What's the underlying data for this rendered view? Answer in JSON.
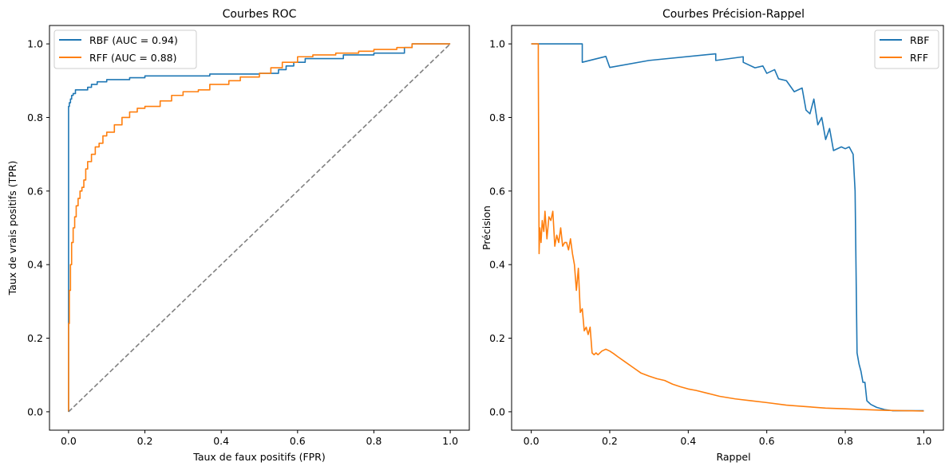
{
  "chart_data": [
    {
      "type": "line",
      "title": "Courbes ROC",
      "xlabel": "Taux de faux positifs (FPR)",
      "ylabel": "Taux de vrais positifs (TPR)",
      "xlim": [
        -0.05,
        1.05
      ],
      "ylim": [
        -0.05,
        1.05
      ],
      "xticks": [
        0.0,
        0.2,
        0.4,
        0.6,
        0.8,
        1.0
      ],
      "yticks": [
        0.0,
        0.2,
        0.4,
        0.6,
        0.8,
        1.0
      ],
      "grid": false,
      "legend_position": "upper-left",
      "series": [
        {
          "name": "RBF (AUC = 0.94)",
          "color": "#1f77b4",
          "style": "steps",
          "x": [
            0,
            0,
            0.002,
            0.002,
            0.005,
            0.005,
            0.008,
            0.008,
            0.012,
            0.012,
            0.018,
            0.018,
            0.05,
            0.05,
            0.06,
            0.06,
            0.075,
            0.075,
            0.1,
            0.1,
            0.16,
            0.16,
            0.2,
            0.2,
            0.37,
            0.37,
            0.5,
            0.5,
            0.55,
            0.55,
            0.57,
            0.57,
            0.59,
            0.59,
            0.62,
            0.62,
            0.72,
            0.72,
            0.8,
            0.8,
            0.88,
            0.88,
            0.9,
            0.9,
            1.0
          ],
          "y": [
            0,
            0.83,
            0.83,
            0.84,
            0.84,
            0.85,
            0.85,
            0.86,
            0.86,
            0.865,
            0.865,
            0.875,
            0.875,
            0.882,
            0.882,
            0.89,
            0.89,
            0.897,
            0.897,
            0.903,
            0.903,
            0.908,
            0.908,
            0.913,
            0.913,
            0.918,
            0.918,
            0.92,
            0.92,
            0.93,
            0.93,
            0.94,
            0.94,
            0.95,
            0.95,
            0.96,
            0.96,
            0.97,
            0.97,
            0.975,
            0.975,
            0.99,
            0.99,
            1.0,
            1.0
          ]
        },
        {
          "name": "RFF (AUC = 0.88)",
          "color": "#ff7f0e",
          "style": "steps",
          "x": [
            0,
            0,
            0.002,
            0.002,
            0.005,
            0.005,
            0.008,
            0.008,
            0.012,
            0.012,
            0.016,
            0.016,
            0.02,
            0.02,
            0.025,
            0.025,
            0.03,
            0.03,
            0.035,
            0.035,
            0.04,
            0.04,
            0.045,
            0.045,
            0.05,
            0.05,
            0.06,
            0.06,
            0.07,
            0.07,
            0.08,
            0.08,
            0.09,
            0.09,
            0.1,
            0.1,
            0.12,
            0.12,
            0.14,
            0.14,
            0.16,
            0.16,
            0.18,
            0.18,
            0.2,
            0.2,
            0.24,
            0.24,
            0.27,
            0.27,
            0.3,
            0.3,
            0.34,
            0.34,
            0.37,
            0.37,
            0.42,
            0.42,
            0.45,
            0.45,
            0.5,
            0.5,
            0.53,
            0.53,
            0.56,
            0.56,
            0.6,
            0.6,
            0.64,
            0.64,
            0.7,
            0.7,
            0.76,
            0.76,
            0.8,
            0.8,
            0.86,
            0.86,
            0.9,
            0.9,
            1.0
          ],
          "y": [
            0,
            0.24,
            0.24,
            0.33,
            0.33,
            0.4,
            0.4,
            0.46,
            0.46,
            0.5,
            0.5,
            0.53,
            0.53,
            0.56,
            0.56,
            0.58,
            0.58,
            0.6,
            0.6,
            0.61,
            0.61,
            0.63,
            0.63,
            0.66,
            0.66,
            0.68,
            0.68,
            0.7,
            0.7,
            0.72,
            0.72,
            0.73,
            0.73,
            0.75,
            0.75,
            0.76,
            0.76,
            0.78,
            0.78,
            0.8,
            0.8,
            0.815,
            0.815,
            0.825,
            0.825,
            0.83,
            0.83,
            0.845,
            0.845,
            0.86,
            0.86,
            0.87,
            0.87,
            0.875,
            0.875,
            0.89,
            0.89,
            0.9,
            0.9,
            0.91,
            0.91,
            0.92,
            0.92,
            0.935,
            0.935,
            0.95,
            0.95,
            0.965,
            0.965,
            0.97,
            0.97,
            0.975,
            0.975,
            0.98,
            0.98,
            0.985,
            0.985,
            0.99,
            0.99,
            1.0,
            1.0
          ]
        },
        {
          "name": "",
          "color": "#808080",
          "style": "dashed",
          "x": [
            0,
            1
          ],
          "y": [
            0,
            1
          ]
        }
      ]
    },
    {
      "type": "line",
      "title": "Courbes Précision-Rappel",
      "xlabel": "Rappel",
      "ylabel": "Précision",
      "xlim": [
        -0.05,
        1.05
      ],
      "ylim": [
        -0.05,
        1.05
      ],
      "xticks": [
        0.0,
        0.2,
        0.4,
        0.6,
        0.8,
        1.0
      ],
      "yticks": [
        0.0,
        0.2,
        0.4,
        0.6,
        0.8,
        1.0
      ],
      "grid": false,
      "legend_position": "upper-right",
      "series": [
        {
          "name": "RBF",
          "color": "#1f77b4",
          "style": "line",
          "x": [
            0.0,
            0.13,
            0.13,
            0.19,
            0.2,
            0.3,
            0.47,
            0.47,
            0.54,
            0.54,
            0.57,
            0.59,
            0.6,
            0.62,
            0.63,
            0.65,
            0.67,
            0.69,
            0.7,
            0.71,
            0.72,
            0.73,
            0.74,
            0.75,
            0.76,
            0.77,
            0.79,
            0.8,
            0.81,
            0.82,
            0.825,
            0.83,
            0.835,
            0.84,
            0.845,
            0.85,
            0.855,
            0.86,
            0.865,
            0.88,
            0.9,
            0.92,
            1.0
          ],
          "y": [
            1.0,
            1.0,
            0.95,
            0.966,
            0.936,
            0.955,
            0.973,
            0.955,
            0.965,
            0.95,
            0.935,
            0.94,
            0.92,
            0.93,
            0.905,
            0.9,
            0.87,
            0.88,
            0.82,
            0.81,
            0.85,
            0.78,
            0.8,
            0.74,
            0.77,
            0.71,
            0.72,
            0.715,
            0.72,
            0.7,
            0.6,
            0.16,
            0.13,
            0.11,
            0.08,
            0.08,
            0.03,
            0.025,
            0.02,
            0.012,
            0.006,
            0.003,
            0.003
          ]
        },
        {
          "name": "RFF",
          "color": "#ff7f0e",
          "style": "line",
          "x": [
            0.0,
            0.018,
            0.018,
            0.02,
            0.022,
            0.025,
            0.028,
            0.032,
            0.035,
            0.04,
            0.045,
            0.05,
            0.055,
            0.06,
            0.065,
            0.07,
            0.075,
            0.08,
            0.085,
            0.09,
            0.095,
            0.1,
            0.105,
            0.11,
            0.115,
            0.12,
            0.125,
            0.13,
            0.135,
            0.14,
            0.145,
            0.15,
            0.155,
            0.16,
            0.165,
            0.17,
            0.18,
            0.19,
            0.2,
            0.21,
            0.22,
            0.24,
            0.26,
            0.28,
            0.3,
            0.32,
            0.34,
            0.36,
            0.38,
            0.4,
            0.42,
            0.45,
            0.48,
            0.52,
            0.56,
            0.6,
            0.65,
            0.7,
            0.75,
            0.8,
            0.85,
            0.9,
            0.95,
            1.0
          ],
          "y": [
            1.0,
            1.0,
            0.95,
            0.43,
            0.5,
            0.46,
            0.52,
            0.49,
            0.545,
            0.47,
            0.53,
            0.52,
            0.545,
            0.45,
            0.48,
            0.46,
            0.5,
            0.45,
            0.46,
            0.46,
            0.44,
            0.47,
            0.43,
            0.4,
            0.33,
            0.39,
            0.27,
            0.28,
            0.22,
            0.23,
            0.21,
            0.23,
            0.16,
            0.155,
            0.16,
            0.155,
            0.165,
            0.17,
            0.165,
            0.158,
            0.15,
            0.135,
            0.12,
            0.105,
            0.097,
            0.09,
            0.085,
            0.075,
            0.068,
            0.062,
            0.058,
            0.05,
            0.042,
            0.035,
            0.03,
            0.025,
            0.018,
            0.014,
            0.01,
            0.008,
            0.006,
            0.004,
            0.003,
            0.002
          ]
        }
      ]
    }
  ]
}
